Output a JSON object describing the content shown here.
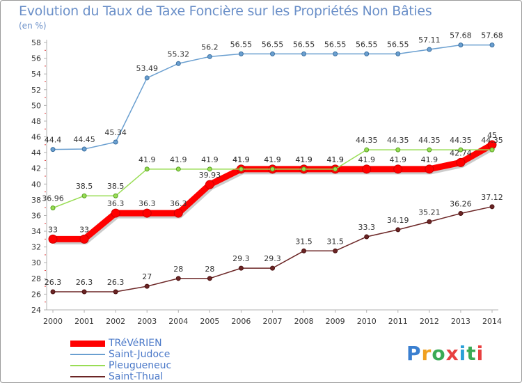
{
  "header": {
    "title": "Evolution du Taux de Taxe Foncière sur les Propriétés Non Bâties",
    "unit": "(en %)"
  },
  "logo": {
    "text": "Proxiti",
    "colors": [
      "#3a7fd0",
      "#f0a020",
      "#3aaa55",
      "#e84040",
      "#2aa0d8",
      "#3aaa55",
      "#e84040"
    ]
  },
  "chart_data": {
    "type": "line",
    "title": "Evolution du Taux de Taxe Foncière sur les Propriétés Non Bâties",
    "ylabel": "(en %)",
    "xlabel": "",
    "x": [
      "2000",
      "2001",
      "2002",
      "2003",
      "2004",
      "2005",
      "2006",
      "2007",
      "2008",
      "2009",
      "2010",
      "2011",
      "2012",
      "2013",
      "2014"
    ],
    "ylim": [
      24,
      58
    ],
    "yticks": [
      24,
      26,
      28,
      30,
      32,
      34,
      36,
      38,
      40,
      42,
      44,
      46,
      48,
      50,
      52,
      54,
      56,
      58
    ],
    "grid": false,
    "legend_position": "bottom-left",
    "series": [
      {
        "name": "TRéVéRIEN",
        "color": "#ff0000",
        "values": [
          33,
          33,
          36.3,
          36.3,
          36.3,
          39.93,
          41.9,
          41.9,
          41.9,
          41.9,
          41.9,
          41.9,
          41.9,
          42.74,
          45
        ],
        "labels": [
          "33",
          "33",
          "36.3",
          "36.3",
          "36.3",
          "39.93",
          "41.9",
          "41.9",
          "41.9",
          "41.9",
          "41.9",
          "41.9",
          "41.9",
          "42.74",
          "45"
        ]
      },
      {
        "name": "Saint-Judoce",
        "color": "#6a9fd0",
        "values": [
          44.4,
          44.45,
          45.34,
          53.49,
          55.32,
          56.2,
          56.55,
          56.55,
          56.55,
          56.55,
          56.55,
          56.55,
          57.11,
          57.68,
          57.68
        ],
        "labels": [
          "44.4",
          "44.45",
          "45.34",
          "53.49",
          "55.32",
          "56.2",
          "56.55",
          "56.55",
          "56.55",
          "56.55",
          "56.55",
          "56.55",
          "57.11",
          "57.68",
          "57.68"
        ]
      },
      {
        "name": "Pleugueneuc",
        "color": "#99dd55",
        "values": [
          36.96,
          38.5,
          38.5,
          41.9,
          41.9,
          41.9,
          41.9,
          41.9,
          41.9,
          41.9,
          44.35,
          44.35,
          44.35,
          44.35,
          44.35
        ],
        "labels": [
          "36.96",
          "38.5",
          "38.5",
          "41.9",
          "41.9",
          "41.9",
          "41.9",
          "41.9",
          "41.9",
          "41.9",
          "44.35",
          "44.35",
          "44.35",
          "44.35",
          "44.35"
        ]
      },
      {
        "name": "Saint-Thual",
        "color": "#6b2525",
        "values": [
          26.3,
          26.3,
          26.3,
          27,
          28,
          28,
          29.3,
          29.3,
          31.5,
          31.5,
          33.3,
          34.19,
          35.21,
          36.26,
          37.12
        ],
        "labels": [
          "26.3",
          "26.3",
          "26.3",
          "27",
          "28",
          "28",
          "29.3",
          "29.3",
          "31.5",
          "31.5",
          "33.3",
          "34.19",
          "35.21",
          "36.26",
          "37.12"
        ]
      }
    ]
  }
}
